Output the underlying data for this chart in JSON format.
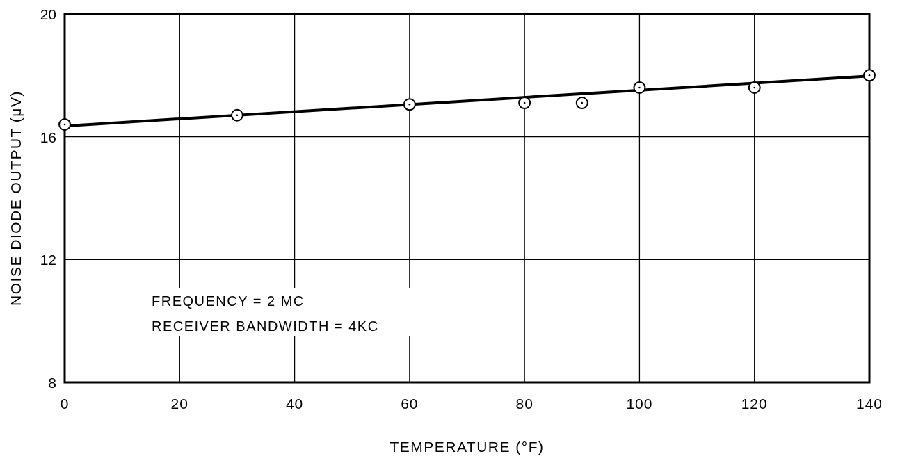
{
  "chart_data": {
    "type": "scatter",
    "xlabel": "TEMPERATURE (°F)",
    "ylabel": "NOISE DIODE OUTPUT (μV)",
    "xlim": [
      0,
      140
    ],
    "xticks": [
      0,
      20,
      40,
      60,
      80,
      100,
      120,
      140
    ],
    "ylim": [
      8,
      20
    ],
    "yticks": [
      8,
      12,
      16,
      20
    ],
    "grid": true,
    "series": [
      {
        "color": "#000000",
        "marker": "circle",
        "x": [
          0,
          30,
          60,
          80,
          90,
          100,
          120,
          140
        ],
        "values": [
          16.4,
          16.7,
          17.05,
          17.1,
          17.1,
          17.6,
          17.6,
          18.0
        ]
      },
      {
        "type": "line",
        "color": "#000000",
        "marker": "none",
        "x": [
          0,
          140
        ],
        "values": [
          16.35,
          17.98
        ]
      }
    ],
    "annotations": [
      "FREQUENCY = 2 MC",
      "RECEIVER BANDWIDTH = 4KC"
    ]
  }
}
